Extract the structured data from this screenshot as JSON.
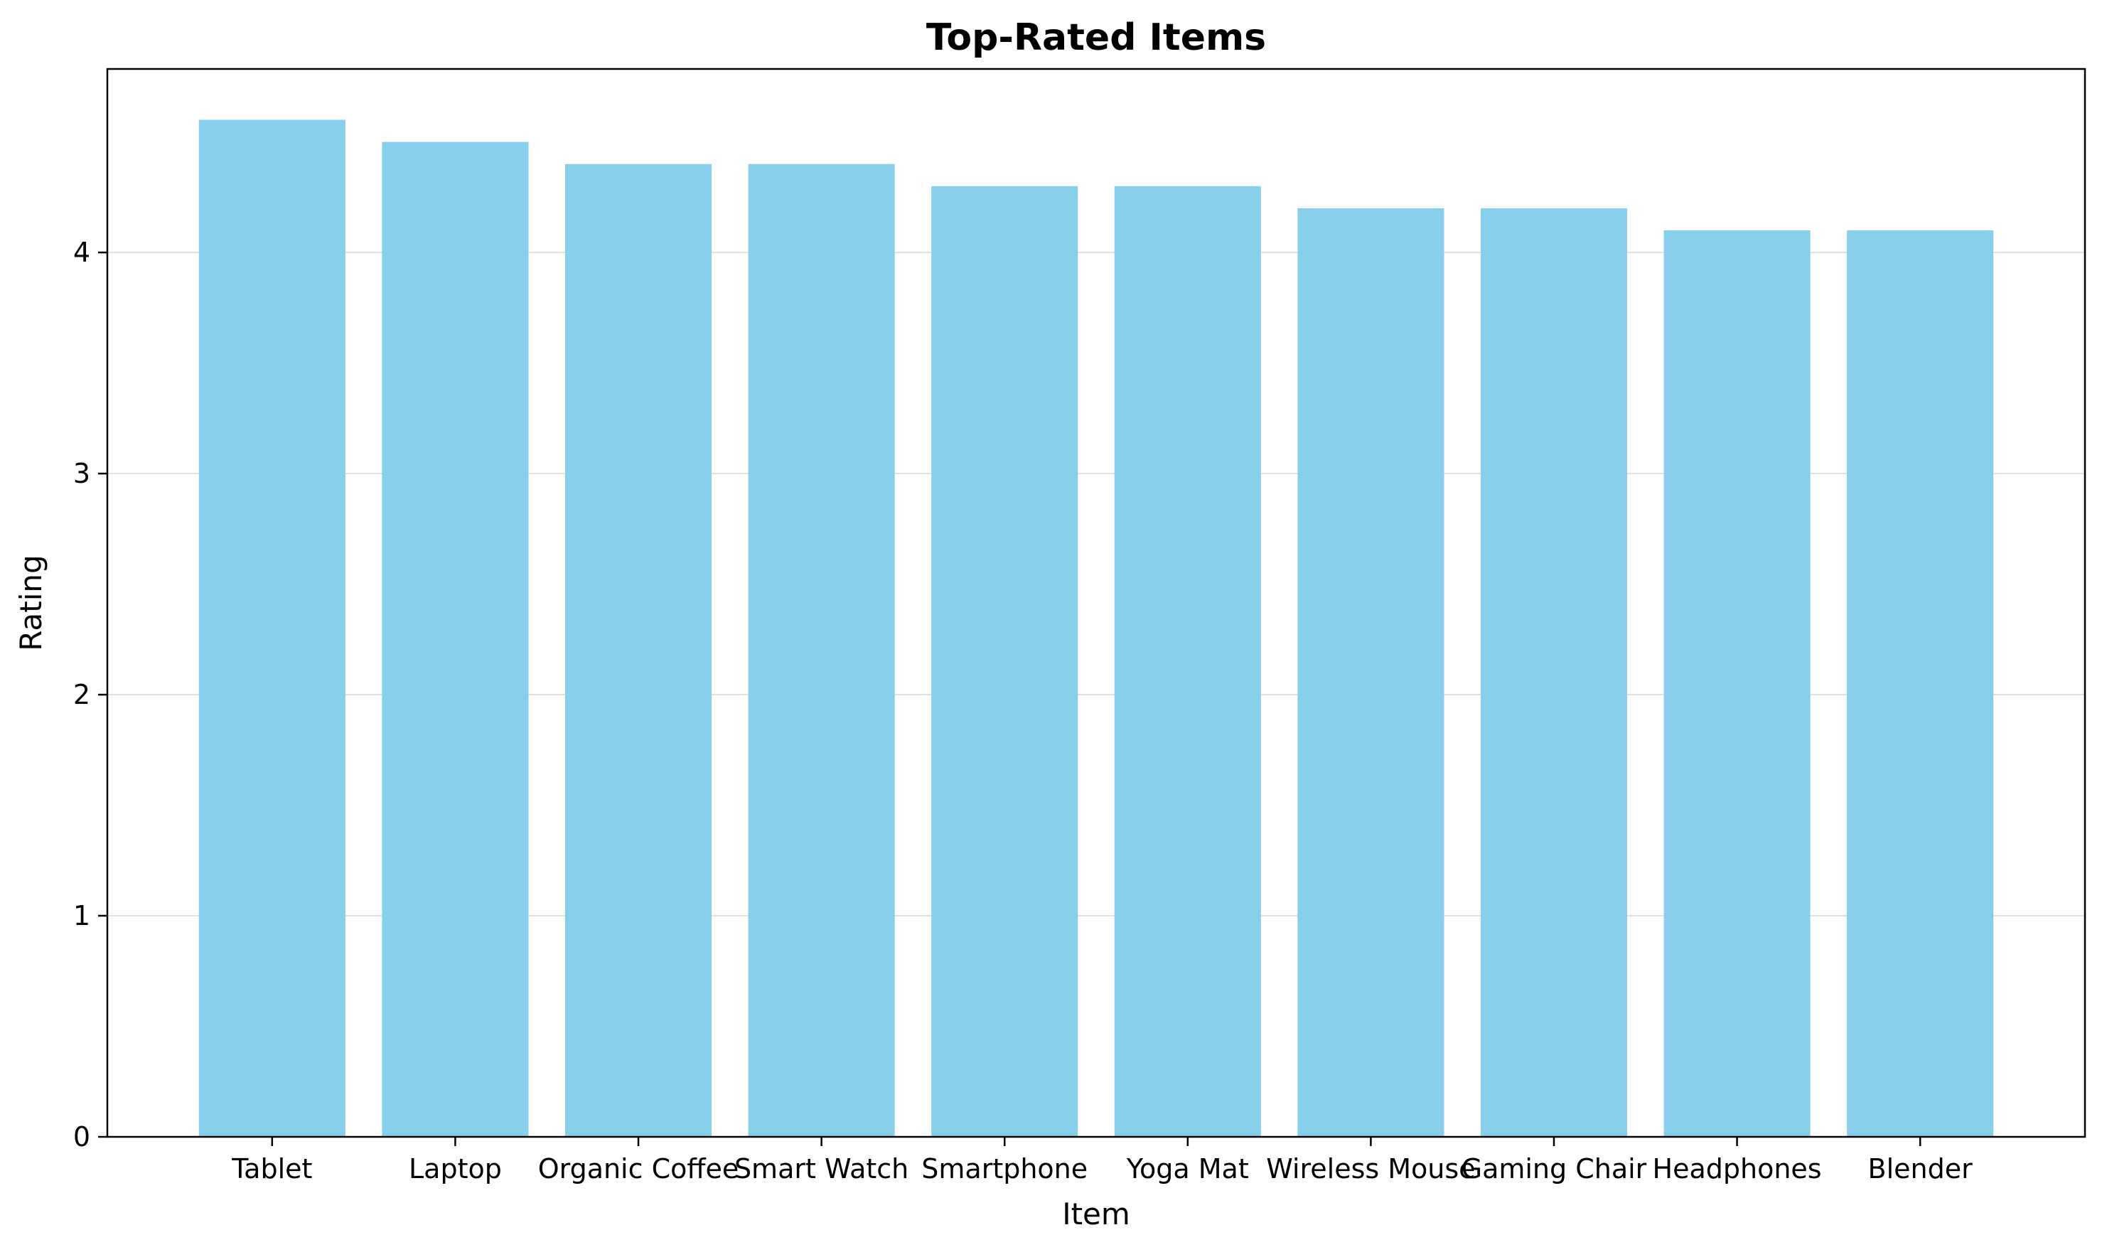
{
  "chart_data": {
    "type": "bar",
    "title": "Top-Rated Items",
    "xlabel": "Item",
    "ylabel": "Rating",
    "categories": [
      "Tablet",
      "Laptop",
      "Organic Coffee",
      "Smart Watch",
      "Smartphone",
      "Yoga Mat",
      "Wireless Mouse",
      "Gaming Chair",
      "Headphones",
      "Blender"
    ],
    "values": [
      4.6,
      4.5,
      4.4,
      4.4,
      4.3,
      4.3,
      4.2,
      4.2,
      4.1,
      4.1
    ],
    "ylim": [
      0,
      4.83
    ],
    "yticks": [
      0,
      1,
      2,
      3,
      4
    ],
    "grid": "y",
    "bar_color": "#87CEEB",
    "grid_color": "#e0e0e0",
    "axis_color": "#000000"
  }
}
